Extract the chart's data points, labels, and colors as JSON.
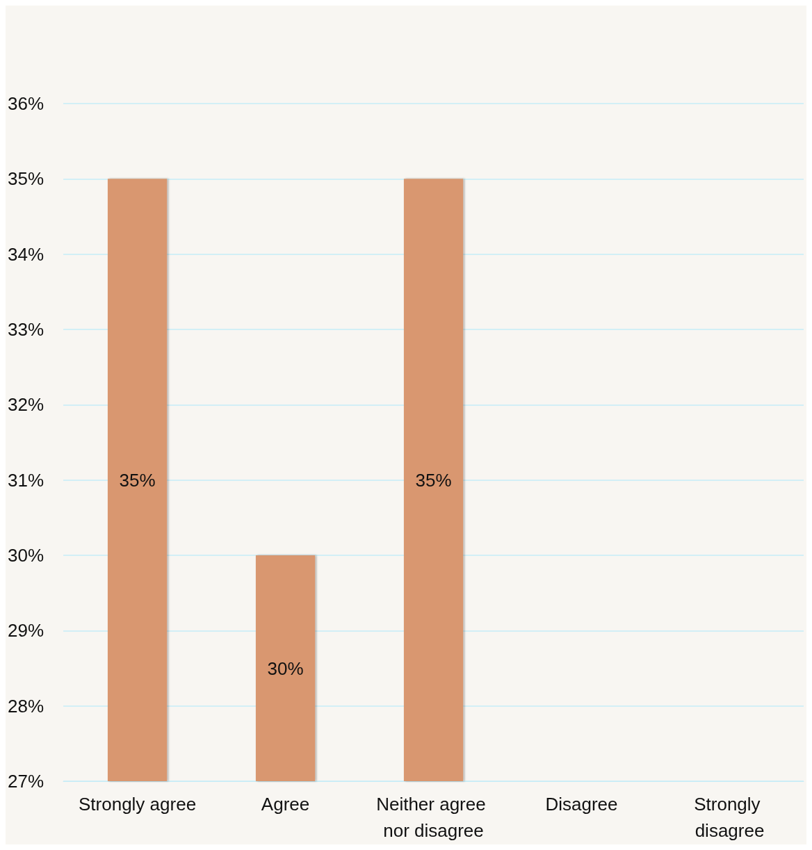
{
  "chart_data": {
    "type": "bar",
    "categories": [
      "Strongly agree",
      "Agree",
      "Neither agree nor disagree",
      "Disagree",
      "Strongly disagree"
    ],
    "values": [
      35,
      30,
      35,
      null,
      null
    ],
    "value_labels": [
      "35%",
      "30%",
      "35%",
      null,
      null
    ],
    "color": "#d9976f",
    "ylim": [
      27,
      36
    ],
    "yticks": [
      {
        "value": 27,
        "label": "27%"
      },
      {
        "value": 28,
        "label": "28%"
      },
      {
        "value": 29,
        "label": "29%"
      },
      {
        "value": 30,
        "label": "30%"
      },
      {
        "value": 31,
        "label": "31%"
      },
      {
        "value": 32,
        "label": "32%"
      },
      {
        "value": 33,
        "label": "33%"
      },
      {
        "value": 34,
        "label": "34%"
      },
      {
        "value": 35,
        "label": "35%"
      },
      {
        "value": 36,
        "label": "36%"
      }
    ],
    "grid": "y"
  }
}
